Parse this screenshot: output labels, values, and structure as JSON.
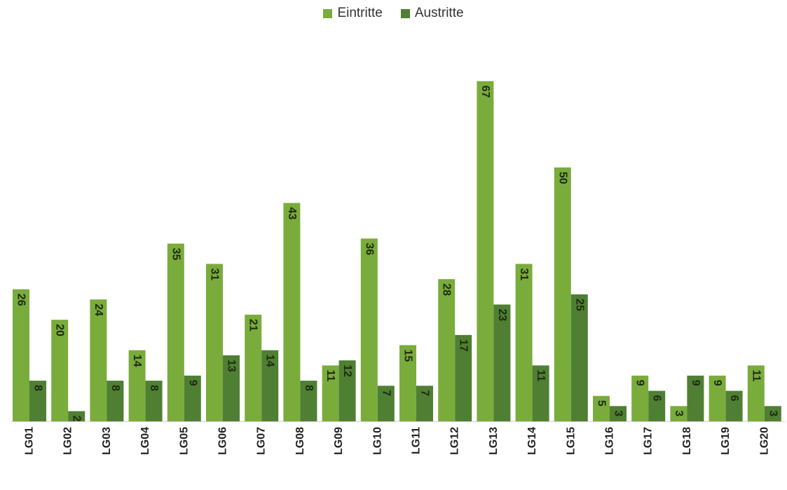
{
  "chart_data": {
    "type": "bar",
    "categories": [
      "LG01",
      "LG02",
      "LG03",
      "LG04",
      "LG05",
      "LG06",
      "LG07",
      "LG08",
      "LG09",
      "LG10",
      "LG11",
      "LG12",
      "LG13",
      "LG14",
      "LG15",
      "LG16",
      "LG17",
      "LG18",
      "LG19",
      "LG20"
    ],
    "series": [
      {
        "name": "Eintritte",
        "color": "#7aac3c",
        "values": [
          26,
          20,
          24,
          14,
          35,
          31,
          21,
          43,
          11,
          36,
          15,
          28,
          67,
          31,
          50,
          5,
          9,
          3,
          9,
          11
        ]
      },
      {
        "name": "Austritte",
        "color": "#4f7f33",
        "values": [
          8,
          2,
          8,
          8,
          9,
          13,
          14,
          8,
          12,
          7,
          7,
          17,
          23,
          11,
          25,
          3,
          6,
          9,
          6,
          3
        ]
      }
    ],
    "title": "",
    "xlabel": "",
    "ylabel": "",
    "ylim": [
      0,
      70
    ],
    "grid": false,
    "legend": "top-center",
    "data_labels": "inside-end-rotated"
  }
}
